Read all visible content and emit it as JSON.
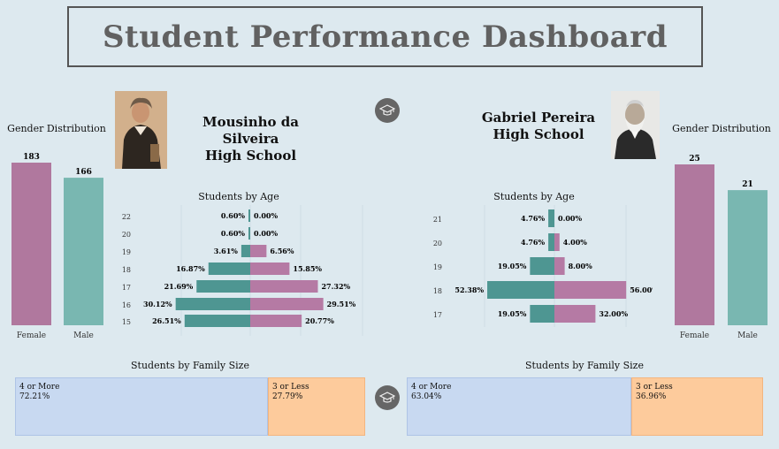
{
  "title": "Student Performance Dashboard",
  "colors": {
    "female": "#b0789e",
    "male": "#79b7b1",
    "age_male": "#4e9692",
    "age_female": "#b57aa4",
    "family_large": "#c8d9f1",
    "family_small": "#fdcb9c",
    "icon_bg": "#666666"
  },
  "icons": {
    "center_top": "graduation-cap-icon",
    "center_bottom": "graduation-cap-icon"
  },
  "left": {
    "school": [
      "Mousinho da Silveira",
      "High School"
    ],
    "gender_title": "Gender Distribution",
    "age_title": "Students by Age",
    "family_title": "Students by Family Size"
  },
  "right": {
    "school": [
      "Gabriel Pereira",
      "High School"
    ],
    "gender_title": "Gender Distribution",
    "age_title": "Students by Age",
    "family_title": "Students by Family Size"
  },
  "chart_data": [
    {
      "id": "left-gender",
      "type": "bar",
      "categories": [
        "Female",
        "Male"
      ],
      "values": [
        183,
        166
      ]
    },
    {
      "id": "left-age",
      "type": "bar",
      "title": "Students by Age",
      "categories": [
        "22",
        "20",
        "19",
        "18",
        "17",
        "16",
        "15"
      ],
      "series": [
        {
          "values": [
            0.6,
            0.6,
            3.61,
            16.87,
            21.69,
            30.12,
            26.51
          ]
        },
        {
          "values": [
            0.0,
            0.0,
            6.56,
            15.85,
            27.32,
            29.51,
            20.77
          ]
        }
      ]
    },
    {
      "id": "right-age",
      "type": "bar",
      "title": "Students by Age",
      "categories": [
        "21",
        "20",
        "19",
        "18",
        "17"
      ],
      "series": [
        {
          "values": [
            4.76,
            4.76,
            19.05,
            52.38,
            19.05
          ]
        },
        {
          "values": [
            0.0,
            4.0,
            8.0,
            56.0,
            32.0
          ]
        }
      ]
    },
    {
      "id": "right-gender",
      "type": "bar",
      "categories": [
        "Female",
        "Male"
      ],
      "values": [
        25,
        21
      ]
    },
    {
      "id": "left-family",
      "type": "bar",
      "title": "Students by Family Size",
      "categories": [
        "4 or More",
        "3 or Less"
      ],
      "values": [
        72.21,
        27.79
      ]
    },
    {
      "id": "right-family",
      "type": "bar",
      "title": "Students by Family Size",
      "categories": [
        "4 or More",
        "3 or Less"
      ],
      "values": [
        63.04,
        36.96
      ]
    }
  ]
}
